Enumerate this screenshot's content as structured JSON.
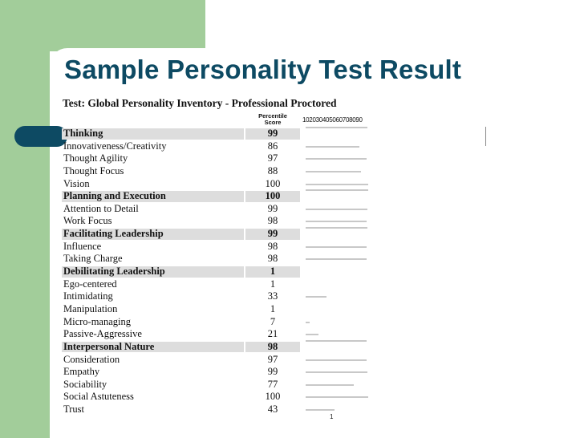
{
  "slide": {
    "title": "Sample Personality Test Result"
  },
  "report": {
    "test_title": "Test: Global Personality Inventory - Professional Proctored",
    "col_score_header_line1": "Percentile",
    "col_score_header_line2": "Score",
    "scale_header": "102030405060708090",
    "footnote": "1",
    "colors": {
      "title": "#0d4a63",
      "accent": "#a2cd9a",
      "category_bg": "#dddddd",
      "bar": "#c8c8c8"
    },
    "rows": [
      {
        "label": "Thinking",
        "score": "99",
        "category": true,
        "value": 99
      },
      {
        "label": "Innovativeness/Creativity",
        "score": "86",
        "category": false,
        "value": 86
      },
      {
        "label": "Thought Agility",
        "score": "97",
        "category": false,
        "value": 97
      },
      {
        "label": "Thought Focus",
        "score": "88",
        "category": false,
        "value": 88
      },
      {
        "label": "Vision",
        "score": "100",
        "category": false,
        "value": 100
      },
      {
        "label": "Planning and Execution",
        "score": "100",
        "category": true,
        "value": 100
      },
      {
        "label": "Attention to Detail",
        "score": "99",
        "category": false,
        "value": 99
      },
      {
        "label": "Work Focus",
        "score": "98",
        "category": false,
        "value": 98
      },
      {
        "label": "Facilitating Leadership",
        "score": "99",
        "category": true,
        "value": 99
      },
      {
        "label": "Influence",
        "score": "98",
        "category": false,
        "value": 98
      },
      {
        "label": "Taking Charge",
        "score": "98",
        "category": false,
        "value": 98
      },
      {
        "label": "Debilitating Leadership",
        "score": "1",
        "category": true,
        "value": 1
      },
      {
        "label": "Ego-centered",
        "score": "1",
        "category": false,
        "value": 1
      },
      {
        "label": "Intimidating",
        "score": "33",
        "category": false,
        "value": 33
      },
      {
        "label": "Manipulation",
        "score": "1",
        "category": false,
        "value": 1
      },
      {
        "label": "Micro-managing",
        "score": "7",
        "category": false,
        "value": 7
      },
      {
        "label": "Passive-Aggressive",
        "score": "21",
        "category": false,
        "value": 21
      },
      {
        "label": "Interpersonal Nature",
        "score": "98",
        "category": true,
        "value": 98
      },
      {
        "label": "Consideration",
        "score": "97",
        "category": false,
        "value": 97
      },
      {
        "label": "Empathy",
        "score": "99",
        "category": false,
        "value": 99
      },
      {
        "label": "Sociability",
        "score": "77",
        "category": false,
        "value": 77
      },
      {
        "label": "Social Astuteness",
        "score": "100",
        "category": false,
        "value": 100
      },
      {
        "label": "Trust",
        "score": "43",
        "category": false,
        "value": 43
      }
    ]
  }
}
